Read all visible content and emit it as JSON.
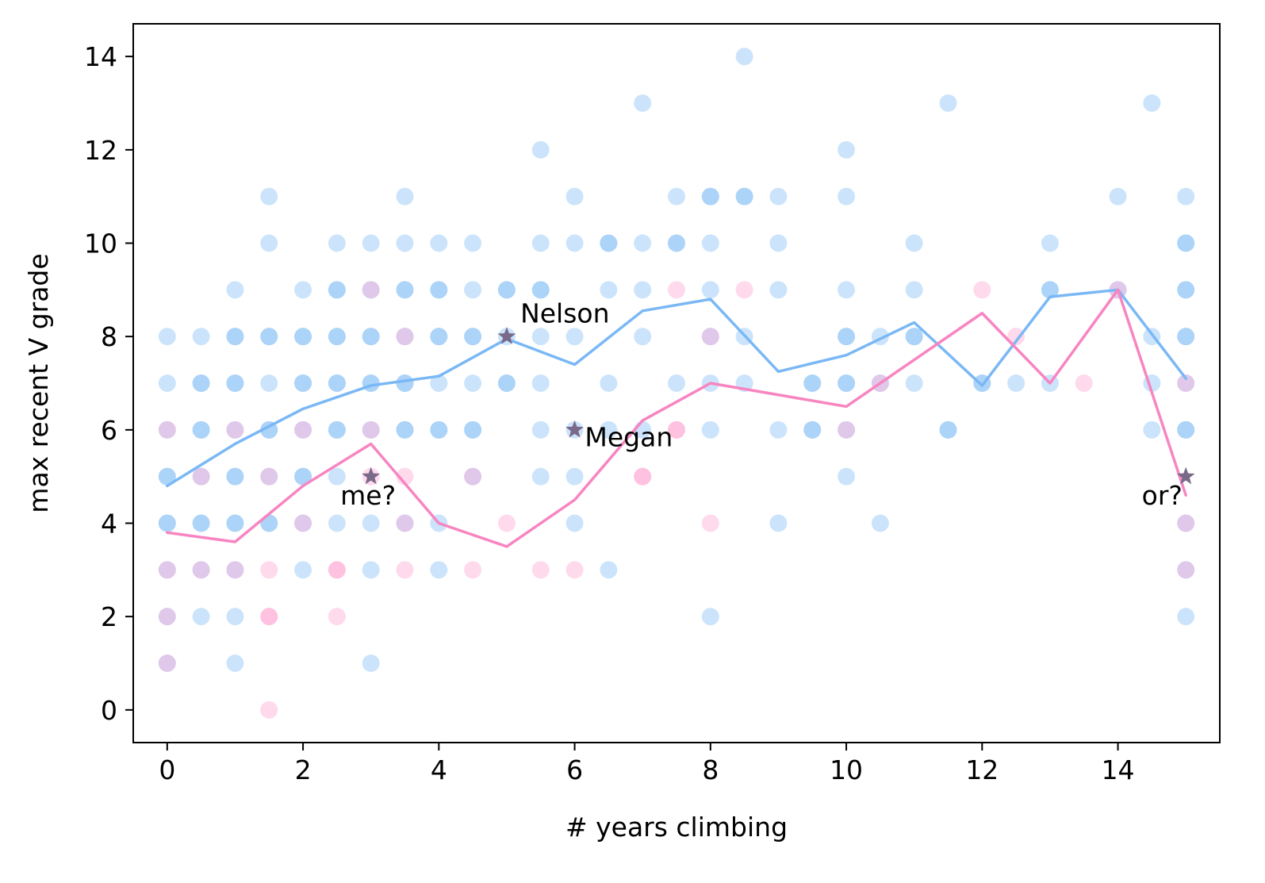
{
  "chart_data": {
    "type": "scatter",
    "title": "",
    "xlabel": "# years climbing",
    "ylabel": "max recent V grade",
    "xlim": [
      -0.5,
      15.5
    ],
    "ylim": [
      -0.7,
      14.7
    ],
    "xticks": [
      0,
      2,
      4,
      6,
      8,
      10,
      12,
      14
    ],
    "yticks": [
      0,
      2,
      4,
      6,
      8,
      10,
      12,
      14
    ],
    "grid": false,
    "legend": "none",
    "colors": {
      "blue": "#7ab8f5",
      "pink": "#f785c1",
      "blue_points": "#7ab8f5",
      "pink_points": "#ff9ccc",
      "star": "#7a6a8a"
    },
    "scatter_series": [
      {
        "color": "blue",
        "points": [
          [
            0,
            8
          ],
          [
            0,
            7
          ],
          [
            0,
            6
          ],
          [
            0,
            5
          ],
          [
            0,
            5
          ],
          [
            0,
            4
          ],
          [
            0,
            4
          ],
          [
            0,
            3
          ],
          [
            0,
            2
          ],
          [
            0,
            1
          ],
          [
            0.5,
            8
          ],
          [
            0.5,
            7
          ],
          [
            0.5,
            7
          ],
          [
            0.5,
            6
          ],
          [
            0.5,
            6
          ],
          [
            0.5,
            5
          ],
          [
            0.5,
            4
          ],
          [
            0.5,
            4
          ],
          [
            0.5,
            3
          ],
          [
            0.5,
            2
          ],
          [
            1,
            9
          ],
          [
            1,
            8
          ],
          [
            1,
            8
          ],
          [
            1,
            7
          ],
          [
            1,
            7
          ],
          [
            1,
            6
          ],
          [
            1,
            5
          ],
          [
            1,
            5
          ],
          [
            1,
            4
          ],
          [
            1,
            4
          ],
          [
            1,
            3
          ],
          [
            1,
            2
          ],
          [
            1,
            1
          ],
          [
            1.5,
            11
          ],
          [
            1.5,
            10
          ],
          [
            1.5,
            8
          ],
          [
            1.5,
            8
          ],
          [
            1.5,
            7
          ],
          [
            1.5,
            6
          ],
          [
            1.5,
            6
          ],
          [
            1.5,
            5
          ],
          [
            1.5,
            4
          ],
          [
            1.5,
            4
          ],
          [
            2,
            9
          ],
          [
            2,
            8
          ],
          [
            2,
            8
          ],
          [
            2,
            7
          ],
          [
            2,
            7
          ],
          [
            2,
            6
          ],
          [
            2,
            5
          ],
          [
            2,
            5
          ],
          [
            2,
            4
          ],
          [
            2,
            3
          ],
          [
            2.5,
            10
          ],
          [
            2.5,
            9
          ],
          [
            2.5,
            9
          ],
          [
            2.5,
            8
          ],
          [
            2.5,
            8
          ],
          [
            2.5,
            7
          ],
          [
            2.5,
            7
          ],
          [
            2.5,
            6
          ],
          [
            2.5,
            6
          ],
          [
            2.5,
            5
          ],
          [
            2.5,
            4
          ],
          [
            3,
            10
          ],
          [
            3,
            9
          ],
          [
            3,
            8
          ],
          [
            3,
            8
          ],
          [
            3,
            7
          ],
          [
            3,
            7
          ],
          [
            3,
            6
          ],
          [
            3,
            4
          ],
          [
            3,
            3
          ],
          [
            3,
            1
          ],
          [
            3.5,
            11
          ],
          [
            3.5,
            10
          ],
          [
            3.5,
            9
          ],
          [
            3.5,
            9
          ],
          [
            3.5,
            8
          ],
          [
            3.5,
            7
          ],
          [
            3.5,
            7
          ],
          [
            3.5,
            6
          ],
          [
            3.5,
            6
          ],
          [
            3.5,
            4
          ],
          [
            4,
            10
          ],
          [
            4,
            9
          ],
          [
            4,
            9
          ],
          [
            4,
            8
          ],
          [
            4,
            8
          ],
          [
            4,
            7
          ],
          [
            4,
            6
          ],
          [
            4,
            6
          ],
          [
            4,
            4
          ],
          [
            4,
            3
          ],
          [
            4.5,
            10
          ],
          [
            4.5,
            9
          ],
          [
            4.5,
            8
          ],
          [
            4.5,
            8
          ],
          [
            4.5,
            7
          ],
          [
            4.5,
            6
          ],
          [
            4.5,
            6
          ],
          [
            4.5,
            5
          ],
          [
            5,
            9
          ],
          [
            5,
            9
          ],
          [
            5,
            8
          ],
          [
            5,
            7
          ],
          [
            5,
            7
          ],
          [
            5.5,
            12
          ],
          [
            5.5,
            10
          ],
          [
            5.5,
            9
          ],
          [
            5.5,
            9
          ],
          [
            5.5,
            8
          ],
          [
            5.5,
            7
          ],
          [
            5.5,
            6
          ],
          [
            5.5,
            5
          ],
          [
            6,
            11
          ],
          [
            6,
            10
          ],
          [
            6,
            8
          ],
          [
            6,
            6
          ],
          [
            6,
            5
          ],
          [
            6,
            4
          ],
          [
            6.5,
            10
          ],
          [
            6.5,
            10
          ],
          [
            6.5,
            9
          ],
          [
            6.5,
            7
          ],
          [
            6.5,
            6
          ],
          [
            6.5,
            3
          ],
          [
            7,
            13
          ],
          [
            7,
            10
          ],
          [
            7,
            9
          ],
          [
            7,
            8
          ],
          [
            7,
            6
          ],
          [
            7.5,
            11
          ],
          [
            7.5,
            10
          ],
          [
            7.5,
            10
          ],
          [
            7.5,
            7
          ],
          [
            8,
            11
          ],
          [
            8,
            11
          ],
          [
            8,
            10
          ],
          [
            8,
            9
          ],
          [
            8,
            8
          ],
          [
            8,
            7
          ],
          [
            8,
            6
          ],
          [
            8,
            2
          ],
          [
            8.5,
            14
          ],
          [
            8.5,
            11
          ],
          [
            8.5,
            11
          ],
          [
            8.5,
            8
          ],
          [
            8.5,
            7
          ],
          [
            9,
            11
          ],
          [
            9,
            10
          ],
          [
            9,
            9
          ],
          [
            9,
            6
          ],
          [
            9,
            4
          ],
          [
            9.5,
            7
          ],
          [
            9.5,
            7
          ],
          [
            9.5,
            6
          ],
          [
            9.5,
            6
          ],
          [
            10,
            12
          ],
          [
            10,
            11
          ],
          [
            10,
            9
          ],
          [
            10,
            8
          ],
          [
            10,
            8
          ],
          [
            10,
            7
          ],
          [
            10,
            7
          ],
          [
            10,
            6
          ],
          [
            10,
            5
          ],
          [
            10.5,
            8
          ],
          [
            10.5,
            7
          ],
          [
            10.5,
            4
          ],
          [
            11,
            10
          ],
          [
            11,
            9
          ],
          [
            11,
            8
          ],
          [
            11,
            8
          ],
          [
            11,
            7
          ],
          [
            11.5,
            13
          ],
          [
            11.5,
            6
          ],
          [
            11.5,
            6
          ],
          [
            12,
            7
          ],
          [
            12,
            7
          ],
          [
            12.5,
            7
          ],
          [
            13,
            10
          ],
          [
            13,
            9
          ],
          [
            13,
            9
          ],
          [
            13,
            7
          ],
          [
            14,
            11
          ],
          [
            14,
            9
          ],
          [
            14.5,
            13
          ],
          [
            14.5,
            8
          ],
          [
            14.5,
            7
          ],
          [
            14.5,
            6
          ],
          [
            15,
            11
          ],
          [
            15,
            10
          ],
          [
            15,
            10
          ],
          [
            15,
            9
          ],
          [
            15,
            9
          ],
          [
            15,
            8
          ],
          [
            15,
            8
          ],
          [
            15,
            7
          ],
          [
            15,
            6
          ],
          [
            15,
            6
          ],
          [
            15,
            4
          ],
          [
            15,
            3
          ],
          [
            15,
            2
          ]
        ]
      },
      {
        "color": "pink",
        "points": [
          [
            0,
            6
          ],
          [
            0,
            3
          ],
          [
            0,
            2
          ],
          [
            0,
            1
          ],
          [
            0.5,
            5
          ],
          [
            0.5,
            3
          ],
          [
            1,
            6
          ],
          [
            1,
            3
          ],
          [
            1.5,
            5
          ],
          [
            1.5,
            3
          ],
          [
            1.5,
            2
          ],
          [
            1.5,
            2
          ],
          [
            1.5,
            0
          ],
          [
            2,
            6
          ],
          [
            2,
            4
          ],
          [
            2.5,
            3
          ],
          [
            2.5,
            3
          ],
          [
            2.5,
            2
          ],
          [
            3,
            9
          ],
          [
            3,
            6
          ],
          [
            3,
            5
          ],
          [
            3.5,
            8
          ],
          [
            3.5,
            5
          ],
          [
            3.5,
            4
          ],
          [
            3.5,
            3
          ],
          [
            4.5,
            5
          ],
          [
            4.5,
            3
          ],
          [
            5,
            4
          ],
          [
            5.5,
            3
          ],
          [
            6,
            3
          ],
          [
            7,
            5
          ],
          [
            7,
            5
          ],
          [
            7.5,
            9
          ],
          [
            7.5,
            6
          ],
          [
            7.5,
            6
          ],
          [
            8,
            8
          ],
          [
            8,
            4
          ],
          [
            8.5,
            9
          ],
          [
            10,
            6
          ],
          [
            10.5,
            7
          ],
          [
            12,
            9
          ],
          [
            12.5,
            8
          ],
          [
            13.5,
            7
          ],
          [
            14,
            9
          ],
          [
            15,
            7
          ],
          [
            15,
            4
          ],
          [
            15,
            3
          ]
        ]
      }
    ],
    "series": [
      {
        "color": "blue",
        "x": [
          0,
          1,
          2,
          3,
          4,
          5,
          6,
          7,
          8,
          9,
          10,
          11,
          12,
          13,
          14,
          15
        ],
        "y": [
          4.8,
          5.7,
          6.45,
          6.95,
          7.15,
          7.95,
          7.4,
          8.55,
          8.8,
          7.25,
          7.6,
          8.3,
          6.95,
          8.85,
          9.0,
          7.1
        ]
      },
      {
        "color": "pink",
        "x": [
          0,
          1,
          2,
          3,
          4,
          5,
          6,
          7,
          8,
          10,
          12,
          13,
          14,
          15
        ],
        "y": [
          3.8,
          3.6,
          4.8,
          5.7,
          4.0,
          3.5,
          4.5,
          6.2,
          7.0,
          6.5,
          8.5,
          7.0,
          9.0,
          4.6
        ]
      }
    ],
    "annotations": [
      {
        "label": "Nelson",
        "x": 5,
        "y": 8,
        "text_dx": 0.2,
        "text_dy": 0.3,
        "anchor": "start"
      },
      {
        "label": "Megan",
        "x": 6,
        "y": 6,
        "text_dx": 0.15,
        "text_dy": -0.35,
        "anchor": "start"
      },
      {
        "label": "me?",
        "x": 3,
        "y": 5,
        "text_dx": -0.45,
        "text_dy": -0.6,
        "anchor": "start"
      },
      {
        "label": "or?",
        "x": 15,
        "y": 5,
        "text_dx": -0.05,
        "text_dy": -0.6,
        "anchor": "end"
      }
    ]
  }
}
